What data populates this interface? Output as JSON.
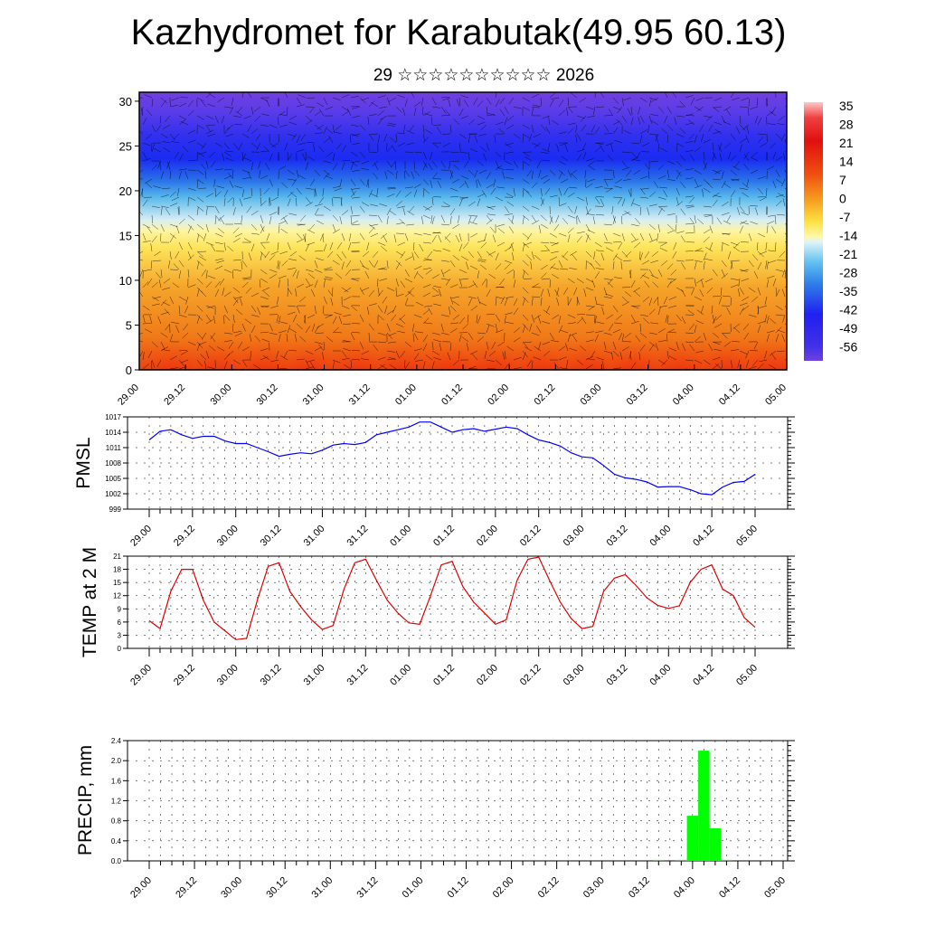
{
  "header": {
    "title": "Kazhydromet for Karabutak(49.95 60.13)",
    "subtitle": "29 ☆☆☆☆☆☆☆☆☆☆ 2026"
  },
  "time_labels": [
    "29.00",
    "29.12",
    "30.00",
    "30.12",
    "31.00",
    "31.12",
    "01.00",
    "01.12",
    "02.00",
    "02.12",
    "03.00",
    "03.12",
    "04.00",
    "04.12",
    "05.00"
  ],
  "chart_data": [
    {
      "type": "heatmap",
      "name": "cross-section",
      "title": "",
      "xlabel": "",
      "ylabel": "",
      "ylim": [
        0,
        31
      ],
      "yticks": [
        0,
        5,
        10,
        15,
        20,
        25,
        30
      ],
      "colorbar_labels": [
        "35",
        "28",
        "21",
        "14",
        "7",
        "0",
        "-7",
        "-14",
        "-21",
        "-28",
        "-35",
        "-42",
        "-49",
        "-56"
      ],
      "colorbar_range": [
        -63,
        42
      ],
      "overlay": "wind barbs"
    },
    {
      "type": "line",
      "name": "pmsl",
      "ylabel": "PMSL",
      "ylim": [
        999,
        1017
      ],
      "yticks": [
        999,
        1002,
        1005,
        1008,
        1011,
        1014,
        1017
      ],
      "color": "#0000ff",
      "values": [
        1012.5,
        1014.2,
        1014.5,
        1013.5,
        1012.8,
        1013.2,
        1013.2,
        1012.3,
        1011.8,
        1011.8,
        1011.0,
        1010.2,
        1009.3,
        1009.7,
        1010.0,
        1009.8,
        1010.5,
        1011.5,
        1011.8,
        1011.6,
        1012.0,
        1013.5,
        1014.0,
        1014.5,
        1015.0,
        1016.0,
        1016.0,
        1015.0,
        1014.0,
        1014.5,
        1014.7,
        1014.2,
        1014.6,
        1015.0,
        1014.7,
        1013.5,
        1012.5,
        1012.0,
        1011.3,
        1010.0,
        1009.2,
        1009.0,
        1007.5,
        1005.8,
        1005.1,
        1004.8,
        1004.3,
        1003.3,
        1003.4,
        1003.4,
        1002.8,
        1002.0,
        1001.8,
        1003.3,
        1004.2,
        1004.4,
        1005.8
      ]
    },
    {
      "type": "line",
      "name": "temp",
      "ylabel": "TEMP at 2 M",
      "ylim": [
        0,
        21
      ],
      "yticks": [
        0,
        3,
        6,
        9,
        12,
        15,
        18,
        21
      ],
      "color": "#e00000",
      "values": [
        6.3,
        4.5,
        13.0,
        18.0,
        18.0,
        11.0,
        6.0,
        4.0,
        2.0,
        2.3,
        11.0,
        18.7,
        19.5,
        13.0,
        9.5,
        6.5,
        4.3,
        5.2,
        13.5,
        19.5,
        20.3,
        15.5,
        11.0,
        8.0,
        5.8,
        5.5,
        12.0,
        19.0,
        19.8,
        14.0,
        10.5,
        8.0,
        5.5,
        6.5,
        15.5,
        20.3,
        20.8,
        15.5,
        10.5,
        6.8,
        4.5,
        5.0,
        13.0,
        16.0,
        16.8,
        14.3,
        11.5,
        9.8,
        9.1,
        9.7,
        15.0,
        18.0,
        19.0,
        13.5,
        12.0,
        7.0,
        4.8
      ]
    },
    {
      "type": "bar",
      "name": "precip",
      "ylabel": "PRECIP, mm",
      "ylim": [
        0,
        2.4
      ],
      "yticks": [
        "0.0",
        "0.4",
        "0.8",
        "1.2",
        "1.6",
        "2.0",
        "2.4"
      ],
      "color": "#00ff00",
      "bars": [
        {
          "t": 45.0,
          "value": 0.02
        },
        {
          "t": 47.0,
          "value": 0.02
        },
        {
          "t": 48.0,
          "value": 0.9
        },
        {
          "t": 49.0,
          "value": 2.2
        },
        {
          "t": 50.0,
          "value": 0.65
        },
        {
          "t": 51.0,
          "value": 0.02
        }
      ]
    }
  ]
}
